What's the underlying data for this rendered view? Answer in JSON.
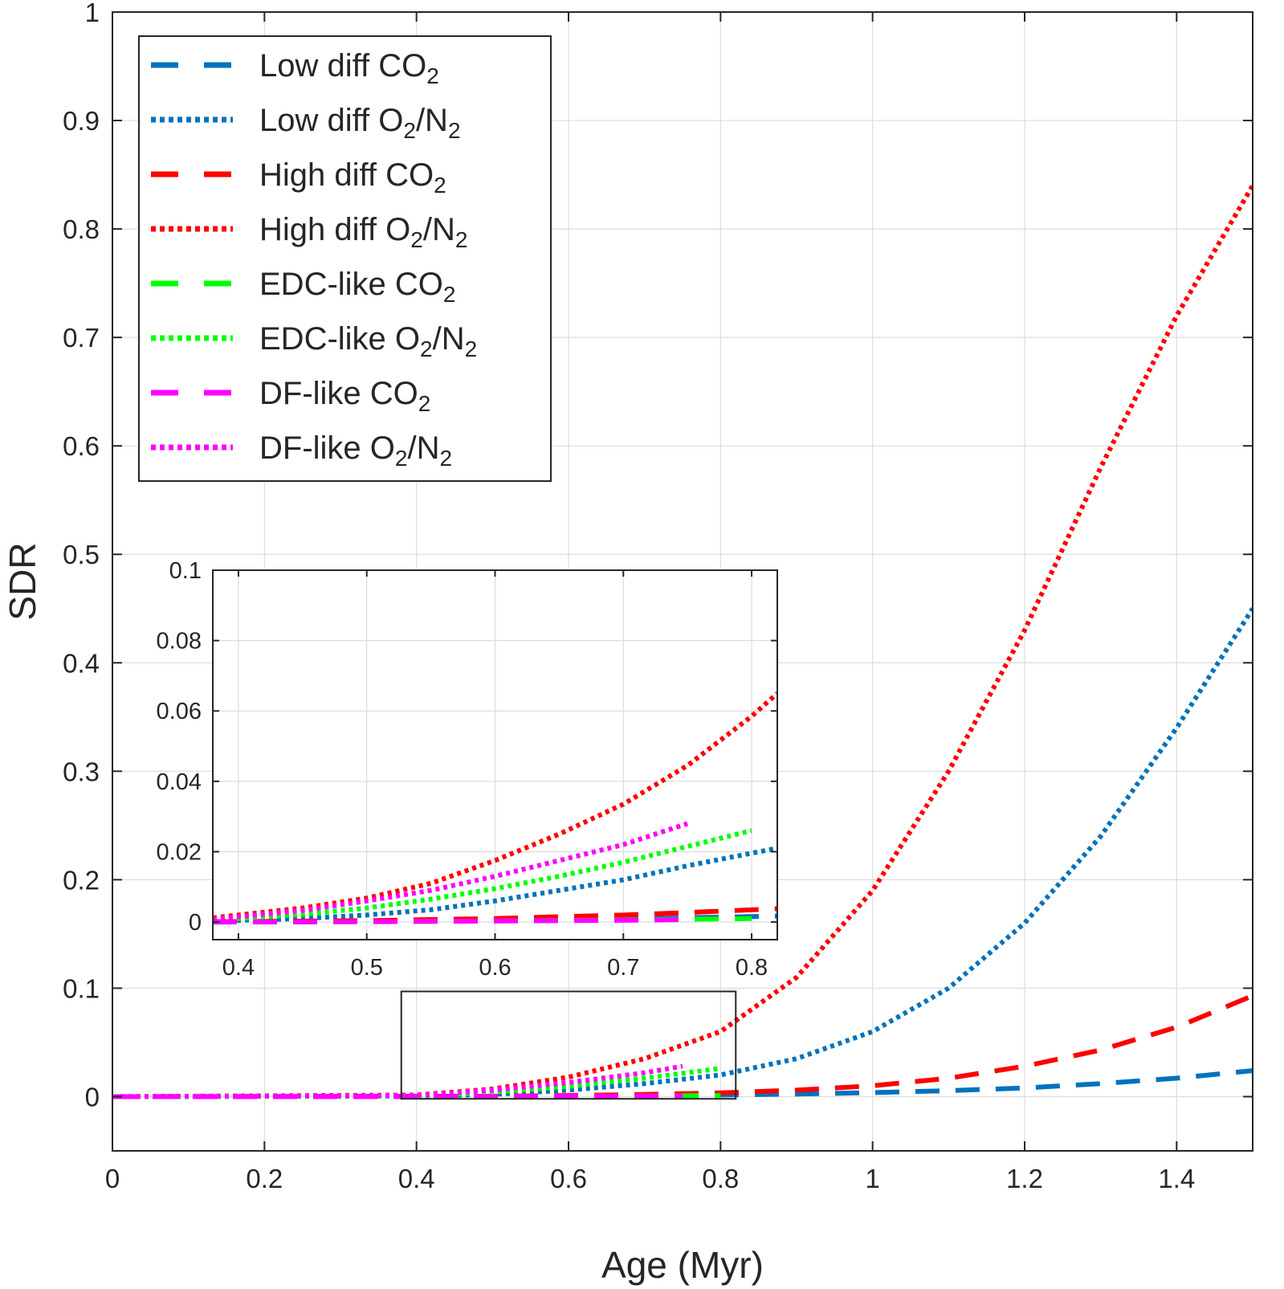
{
  "chart_data": [
    {
      "type": "line",
      "title": "",
      "xlabel": "Age (Myr)",
      "ylabel": "SDR",
      "xlim": [
        0,
        1.5
      ],
      "ylim": [
        -0.05,
        1
      ],
      "xticks": [
        0,
        0.2,
        0.4,
        0.6,
        0.8,
        1,
        1.2,
        1.4
      ],
      "xtick_labels": [
        "0",
        "0.2",
        "0.4",
        "0.6",
        "0.8",
        "1",
        "1.2",
        "1.4"
      ],
      "yticks": [
        0,
        0.1,
        0.2,
        0.3,
        0.4,
        0.5,
        0.6,
        0.7,
        0.8,
        0.9,
        1
      ],
      "ytick_labels": [
        "0",
        "0.1",
        "0.2",
        "0.3",
        "0.4",
        "0.5",
        "0.6",
        "0.7",
        "0.8",
        "0.9",
        "1"
      ],
      "grid": true,
      "legend_position": "top-left",
      "legend": [
        {
          "base": "Low  diff  CO",
          "sub": "2",
          "tail": "",
          "color": "#0072BD",
          "style": "dashed"
        },
        {
          "base": "Low  diff  O",
          "sub": "2",
          "tail": "/N",
          "sub2": "2",
          "color": "#0072BD",
          "style": "dotted"
        },
        {
          "base": "High  diff  CO",
          "sub": "2",
          "tail": "",
          "color": "#FF0000",
          "style": "dashed"
        },
        {
          "base": "High  diff  O",
          "sub": "2",
          "tail": "/N",
          "sub2": "2",
          "color": "#FF0000",
          "style": "dotted"
        },
        {
          "base": "EDC-like  CO",
          "sub": "2",
          "tail": "",
          "color": "#00FF00",
          "style": "dashed"
        },
        {
          "base": "EDC-like  O",
          "sub": "2",
          "tail": "/N",
          "sub2": "2",
          "color": "#00FF00",
          "style": "dotted"
        },
        {
          "base": "DF-like  CO",
          "sub": "2",
          "tail": "",
          "color": "#FF00FF",
          "style": "dashed"
        },
        {
          "base": "DF-like  O",
          "sub": "2",
          "tail": "/N",
          "sub2": "2",
          "color": "#FF00FF",
          "style": "dotted"
        }
      ],
      "series": [
        {
          "color": "#0072BD",
          "style": "dashed",
          "x": [
            0,
            0.5,
            0.6,
            0.7,
            0.8,
            0.9,
            1.0,
            1.1,
            1.2,
            1.3,
            1.4,
            1.5
          ],
          "y": [
            0,
            0.0002,
            0.0005,
            0.0009,
            0.0015,
            0.0024,
            0.0037,
            0.0055,
            0.008,
            0.012,
            0.017,
            0.024
          ]
        },
        {
          "color": "#0072BD",
          "style": "dotted",
          "x": [
            0,
            0.4,
            0.5,
            0.6,
            0.7,
            0.8,
            0.9,
            1.0,
            1.1,
            1.2,
            1.3,
            1.4,
            1.5
          ],
          "y": [
            0,
            0.0005,
            0.002,
            0.006,
            0.012,
            0.02,
            0.035,
            0.06,
            0.1,
            0.16,
            0.24,
            0.34,
            0.45
          ]
        },
        {
          "color": "#FF0000",
          "style": "dashed",
          "x": [
            0,
            0.5,
            0.6,
            0.7,
            0.8,
            0.9,
            1.0,
            1.1,
            1.2,
            1.3,
            1.4,
            1.5
          ],
          "y": [
            0,
            0.0004,
            0.001,
            0.002,
            0.0035,
            0.006,
            0.01,
            0.017,
            0.028,
            0.043,
            0.064,
            0.093
          ]
        },
        {
          "color": "#FF0000",
          "style": "dotted",
          "x": [
            0,
            0.4,
            0.5,
            0.6,
            0.7,
            0.8,
            0.9,
            1.0,
            1.1,
            1.2,
            1.3,
            1.4,
            1.5
          ],
          "y": [
            0,
            0.0015,
            0.007,
            0.018,
            0.035,
            0.06,
            0.11,
            0.19,
            0.3,
            0.43,
            0.58,
            0.72,
            0.84
          ]
        },
        {
          "color": "#00FF00",
          "style": "dashed",
          "x": [
            0,
            0.4,
            0.5,
            0.6,
            0.7,
            0.8
          ],
          "y": [
            0,
            0,
            0.0001,
            0.0003,
            0.0006,
            0.001
          ]
        },
        {
          "color": "#00FF00",
          "style": "dotted",
          "x": [
            0,
            0.4,
            0.5,
            0.6,
            0.7,
            0.8
          ],
          "y": [
            0,
            0.0008,
            0.004,
            0.0095,
            0.017,
            0.026
          ]
        },
        {
          "color": "#FF00FF",
          "style": "dashed",
          "x": [
            0,
            0.4,
            0.5,
            0.6,
            0.7,
            0.75
          ],
          "y": [
            0,
            0,
            0.0001,
            0.0003,
            0.0005,
            0.0007
          ]
        },
        {
          "color": "#FF00FF",
          "style": "dotted",
          "x": [
            0,
            0.4,
            0.5,
            0.6,
            0.7,
            0.75
          ],
          "y": [
            0,
            0.0012,
            0.006,
            0.013,
            0.022,
            0.028
          ]
        }
      ],
      "zoom_box": {
        "x": [
          0.38,
          0.82
        ],
        "y": [
          -0.002,
          0.097
        ]
      }
    },
    {
      "type": "line",
      "title": "",
      "xlabel": "",
      "ylabel": "",
      "xlim": [
        0.38,
        0.82
      ],
      "ylim": [
        -0.005,
        0.1
      ],
      "xticks": [
        0.4,
        0.5,
        0.6,
        0.7,
        0.8
      ],
      "xtick_labels": [
        "0.4",
        "0.5",
        "0.6",
        "0.7",
        "0.8"
      ],
      "yticks": [
        0,
        0.02,
        0.04,
        0.06,
        0.08,
        0.1
      ],
      "ytick_labels": [
        "0",
        "0.02",
        "0.04",
        "0.06",
        "0.08",
        "0.1"
      ],
      "grid": true,
      "series": [
        {
          "color": "#0072BD",
          "style": "dashed",
          "x": [
            0.38,
            0.5,
            0.6,
            0.7,
            0.82
          ],
          "y": [
            0,
            0.0002,
            0.0005,
            0.0009,
            0.0017
          ]
        },
        {
          "color": "#0072BD",
          "style": "dotted",
          "x": [
            0.38,
            0.45,
            0.5,
            0.55,
            0.6,
            0.65,
            0.7,
            0.75,
            0.82
          ],
          "y": [
            0.0003,
            0.001,
            0.002,
            0.0035,
            0.006,
            0.009,
            0.012,
            0.016,
            0.021
          ]
        },
        {
          "color": "#FF0000",
          "style": "dashed",
          "x": [
            0.38,
            0.5,
            0.6,
            0.7,
            0.75,
            0.82
          ],
          "y": [
            0.0001,
            0.0004,
            0.001,
            0.002,
            0.0027,
            0.0038
          ]
        },
        {
          "color": "#FF0000",
          "style": "dotted",
          "x": [
            0.38,
            0.45,
            0.5,
            0.55,
            0.6,
            0.65,
            0.7,
            0.75,
            0.8,
            0.82
          ],
          "y": [
            0.0012,
            0.004,
            0.0068,
            0.011,
            0.0175,
            0.025,
            0.0335,
            0.0445,
            0.0585,
            0.065
          ]
        },
        {
          "color": "#00FF00",
          "style": "dashed",
          "x": [
            0.38,
            0.5,
            0.6,
            0.7,
            0.8
          ],
          "y": [
            0,
            0.0001,
            0.0003,
            0.0006,
            0.001
          ]
        },
        {
          "color": "#00FF00",
          "style": "dotted",
          "x": [
            0.38,
            0.45,
            0.5,
            0.55,
            0.6,
            0.65,
            0.7,
            0.75,
            0.8
          ],
          "y": [
            0.0005,
            0.0022,
            0.004,
            0.0065,
            0.0095,
            0.013,
            0.017,
            0.0215,
            0.026
          ]
        },
        {
          "color": "#FF00FF",
          "style": "dashed",
          "x": [
            0.38,
            0.5,
            0.6,
            0.7,
            0.75
          ],
          "y": [
            0,
            0.0001,
            0.0003,
            0.0005,
            0.0007
          ]
        },
        {
          "color": "#FF00FF",
          "style": "dotted",
          "x": [
            0.38,
            0.45,
            0.5,
            0.55,
            0.6,
            0.65,
            0.7,
            0.75
          ],
          "y": [
            0.0008,
            0.0033,
            0.006,
            0.009,
            0.013,
            0.0175,
            0.022,
            0.028
          ]
        }
      ]
    }
  ]
}
